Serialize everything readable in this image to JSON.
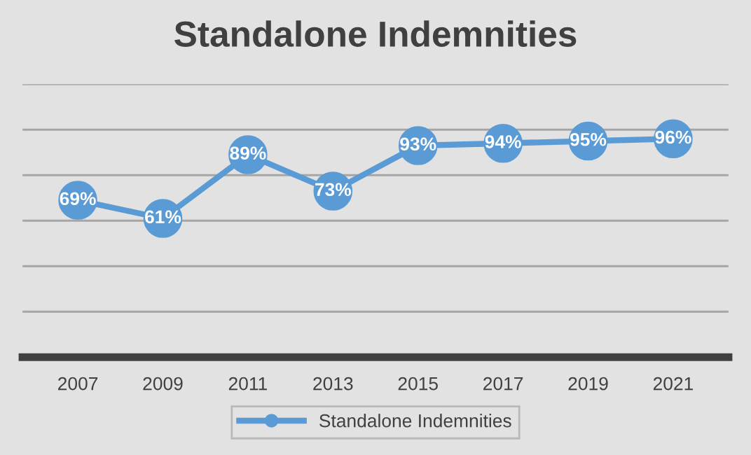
{
  "chart_data": {
    "type": "line",
    "title": "Standalone Indemnities",
    "categories": [
      "2007",
      "2009",
      "2011",
      "2013",
      "2015",
      "2017",
      "2019",
      "2021"
    ],
    "series": [
      {
        "name": "Standalone Indemnities",
        "color": "#5b9bd5",
        "values": [
          69,
          61,
          89,
          73,
          93,
          94,
          95,
          96
        ],
        "value_labels": [
          "69%",
          "61%",
          "89%",
          "73%",
          "93%",
          "94%",
          "95%",
          "96%"
        ]
      }
    ],
    "ylim": [
      0,
      120
    ],
    "yticks": [
      {
        "value": 0,
        "label": null
      },
      {
        "value": 20,
        "label": null
      },
      {
        "value": 40,
        "label": null
      },
      {
        "value": 60,
        "label": null
      },
      {
        "value": 80,
        "label": null
      },
      {
        "value": 100,
        "label": null
      },
      {
        "value": 120,
        "label": null
      }
    ],
    "tick_labels": "x",
    "grid": "y",
    "legend": "bottom",
    "marker": "circle",
    "line_style": "solid"
  }
}
